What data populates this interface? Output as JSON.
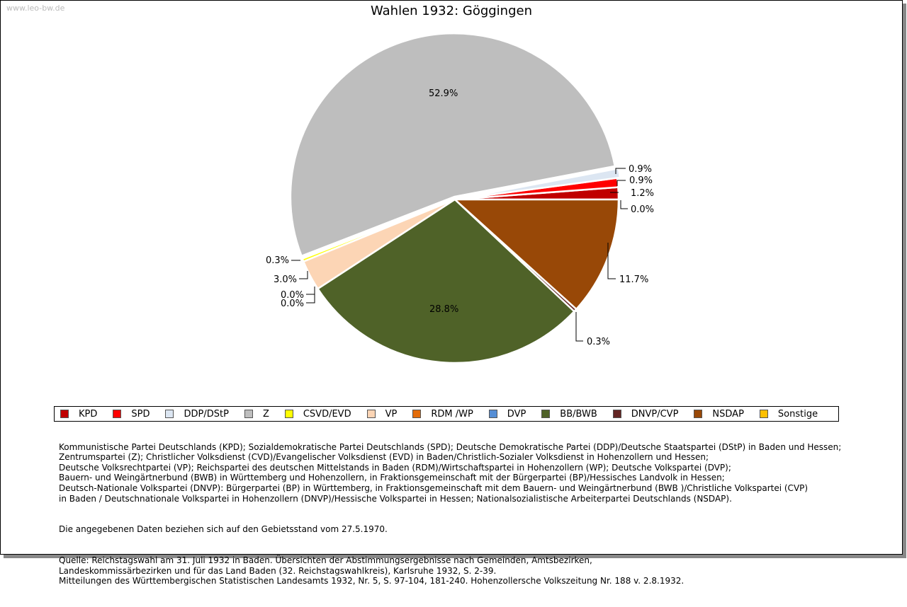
{
  "watermark": "www.leo-bw.de",
  "chart_data": {
    "type": "pie",
    "title": "Wahlen 1932: Göggingen",
    "slices": [
      {
        "name": "KPD",
        "value": 1.2,
        "label": "1.2%",
        "color": "#c00000"
      },
      {
        "name": "SPD",
        "value": 0.9,
        "label": "0.9%",
        "color": "#ff0000"
      },
      {
        "name": "DDP/DStP",
        "value": 0.9,
        "label": "0.9%",
        "color": "#dce6f2"
      },
      {
        "name": "Z",
        "value": 52.9,
        "label": "52.9%",
        "color": "#bebebe"
      },
      {
        "name": "CSVD/EVD",
        "value": 0.3,
        "label": "0.3%",
        "color": "#ffff00"
      },
      {
        "name": "VP",
        "value": 3.0,
        "label": "3.0%",
        "color": "#fcd5b5"
      },
      {
        "name": "RDM /WP",
        "value": 0.0,
        "label": "0.0%",
        "color": "#e36c09"
      },
      {
        "name": "DVP",
        "value": 0.0,
        "label": "0.0%",
        "color": "#558ed5"
      },
      {
        "name": "BB/BWB",
        "value": 28.8,
        "label": "28.8%",
        "color": "#4f6228"
      },
      {
        "name": "DNVP/CVP",
        "value": 0.3,
        "label": "0.3%",
        "color": "#632523"
      },
      {
        "name": "NSDAP",
        "value": 11.7,
        "label": "11.7%",
        "color": "#984807"
      },
      {
        "name": "Sonstige",
        "value": 0.0,
        "label": "0.0%",
        "color": "#ffc000"
      }
    ],
    "legend_placement": "bottom"
  },
  "notes": {
    "parties": "Kommunistische Partei Deutschlands (KPD); Sozialdemokratische Partei Deutschlands (SPD); Deutsche Demokratische Partei (DDP)/Deutsche Staatspartei (DStP) in Baden und Hessen;\nZentrumspartei (Z); Christlicher Volksdienst (CVD)/Evangelischer Volksdienst (EVD) in Baden/Christlich-Sozialer Volksdienst in Hohenzollern und Hessen;\nDeutsche Volksrechtpartei (VP); Reichspartei des deutschen Mittelstands in Baden (RDM)/Wirtschaftspartei in Hohenzollern (WP); Deutsche Volkspartei (DVP);\nBauern- und Weingärtnerbund (BWB) in Württemberg und Hohenzollern, in Fraktionsgemeinschaft mit der Bürgerpartei (BP)/Hessisches Landvolk in Hessen;\nDeutsch-Nationale Volkspartei (DNVP): Bürgerpartei (BP) in Württemberg, in Fraktionsgemeinschaft mit dem Bauern- und Weingärtnerbund (BWB )/Christliche Volkspartei (CVP)\nin Baden / Deutschnationale Volkspartei in Hohenzollern (DNVP)/Hessische Volkspartei in Hessen; Nationalsozialistische Arbeiterpartei Deutschlands (NSDAP).",
    "territory": "Die angegebenen Daten beziehen sich auf den Gebietsstand vom 27.5.1970.",
    "source": "Quelle: Reichstagswahl am 31. Juli 1932 in Baden. Übersichten der Abstimmungsergebnisse nach Gemeinden, Amtsbezirken,\nLandeskommissärbezirken und für das Land Baden (32. Reichstagswahlkreis), Karlsruhe 1932, S. 2-39.\nMitteilungen des Württembergischen Statistischen Landesamts 1932, Nr. 5, S. 97-104, 181-240. Hohenzollersche Volkszeitung Nr. 188 v. 2.8.1932."
  }
}
